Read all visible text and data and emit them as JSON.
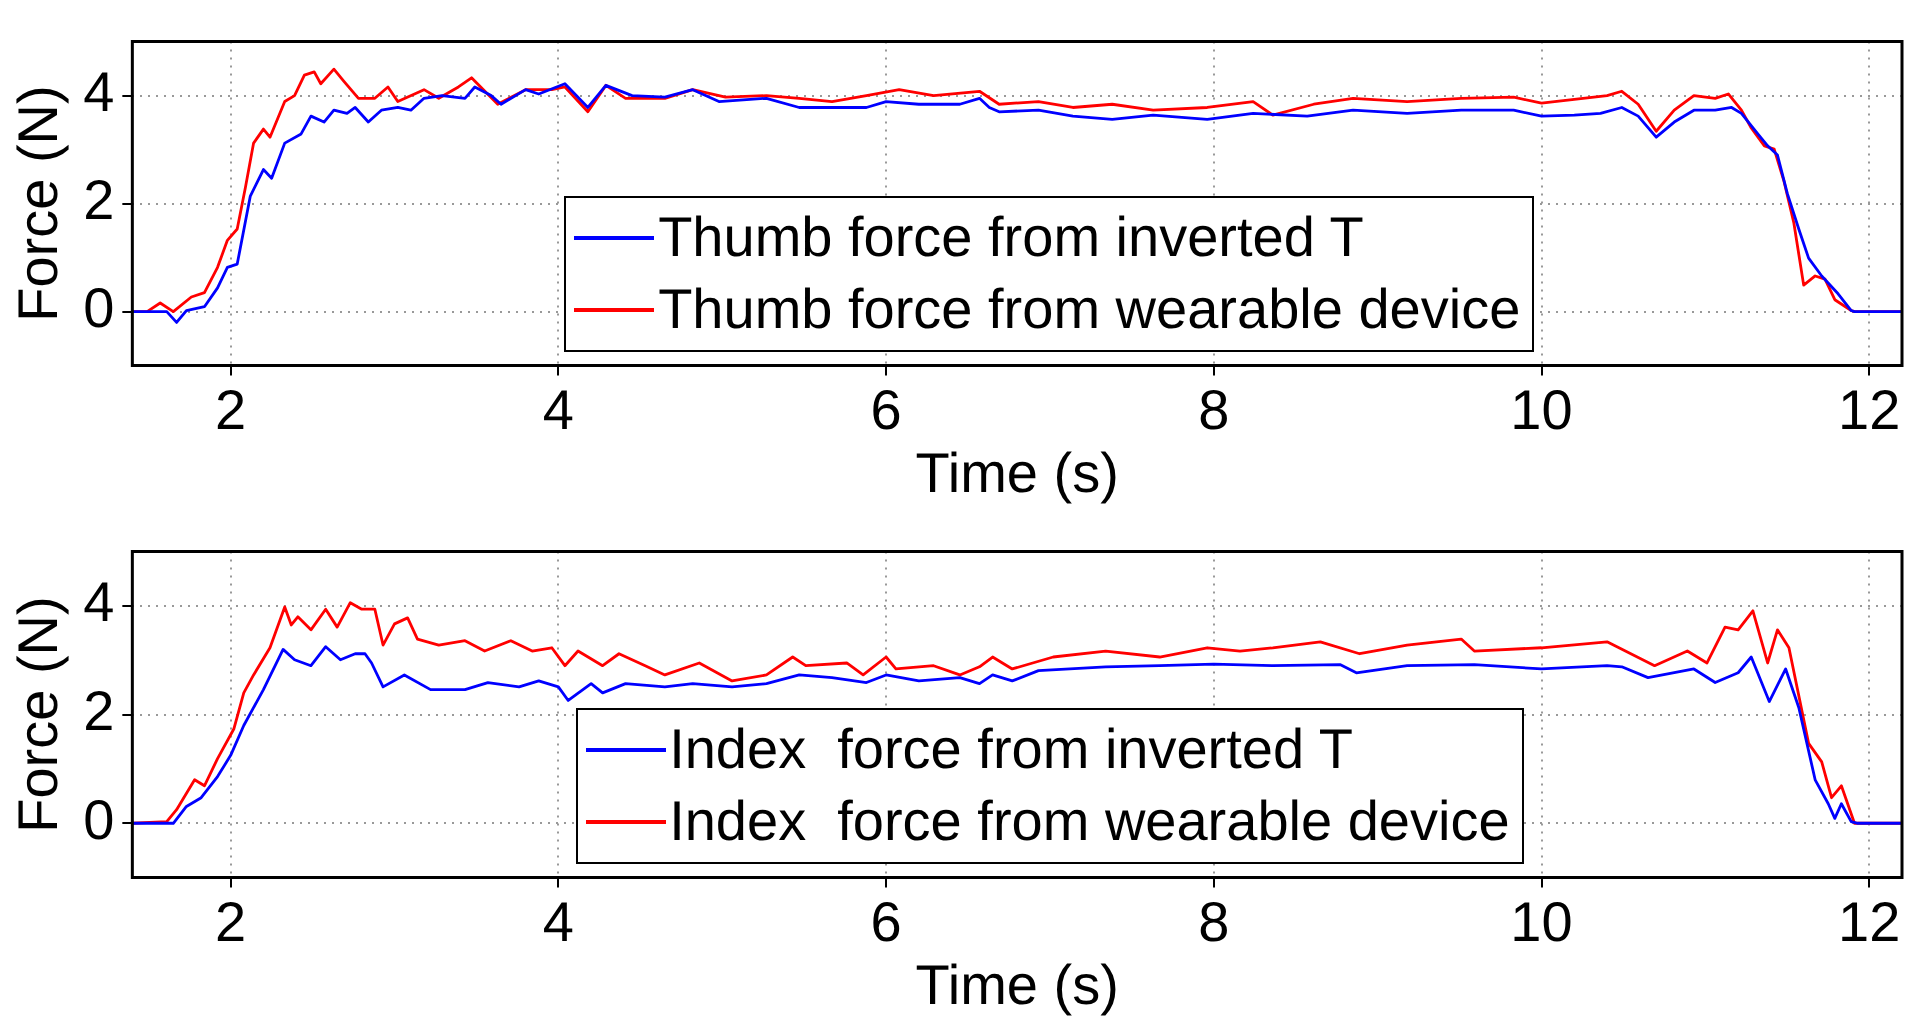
{
  "chart_data": [
    {
      "type": "line",
      "xlabel": "Time (s)",
      "ylabel": "Force (N)",
      "xlim": [
        1.4,
        12.2
      ],
      "xticks": [
        2,
        4,
        6,
        8,
        10,
        12
      ],
      "ylim": [
        -1,
        5
      ],
      "yticks": [
        0,
        2,
        4
      ],
      "grid": true,
      "legend": "bottom",
      "marker": "none",
      "line_style": "solid",
      "series": [
        {
          "name": "Thumb force from inverted T",
          "color": "#0000ff",
          "x": [
            1.4,
            1.61,
            1.67,
            1.73,
            1.84,
            1.92,
            1.98,
            2.04,
            2.12,
            2.2,
            2.25,
            2.33,
            2.43,
            2.49,
            2.57,
            2.63,
            2.71,
            2.76,
            2.84,
            2.92,
            3.02,
            3.1,
            3.18,
            3.29,
            3.43,
            3.49,
            3.59,
            3.65,
            3.8,
            3.88,
            4.04,
            4.18,
            4.29,
            4.45,
            4.65,
            4.82,
            4.98,
            5.27,
            5.47,
            5.67,
            5.88,
            6.0,
            6.2,
            6.45,
            6.57,
            6.63,
            6.69,
            6.93,
            7.14,
            7.38,
            7.63,
            7.96,
            8.24,
            8.57,
            8.85,
            9.18,
            9.51,
            9.83,
            10.0,
            10.2,
            10.36,
            10.49,
            10.59,
            10.7,
            10.81,
            10.93,
            11.06,
            11.16,
            11.22,
            11.32,
            11.38,
            11.44,
            11.5,
            11.57,
            11.63,
            11.71,
            11.81,
            11.89,
            11.91,
            12.2
          ],
          "values": [
            0,
            0,
            -0.2,
            0.02,
            0.09,
            0.44,
            0.82,
            0.88,
            2.14,
            2.63,
            2.47,
            3.12,
            3.29,
            3.62,
            3.51,
            3.73,
            3.67,
            3.78,
            3.51,
            3.73,
            3.78,
            3.73,
            3.95,
            4.0,
            3.95,
            4.16,
            4.0,
            3.84,
            4.11,
            4.03,
            4.22,
            3.78,
            4.19,
            4.0,
            3.97,
            4.11,
            3.89,
            3.95,
            3.78,
            3.78,
            3.78,
            3.89,
            3.84,
            3.84,
            3.95,
            3.78,
            3.7,
            3.73,
            3.62,
            3.56,
            3.64,
            3.56,
            3.67,
            3.62,
            3.73,
            3.67,
            3.73,
            3.73,
            3.62,
            3.64,
            3.67,
            3.78,
            3.62,
            3.23,
            3.51,
            3.73,
            3.73,
            3.78,
            3.67,
            3.29,
            3.07,
            2.9,
            2.19,
            1.53,
            0.99,
            0.66,
            0.33,
            0.02,
            0,
            0
          ]
        },
        {
          "name": "Thumb force from wearable device",
          "color": "#ff0000",
          "x": [
            1.4,
            1.49,
            1.57,
            1.65,
            1.76,
            1.84,
            1.92,
            1.98,
            2.04,
            2.09,
            2.14,
            2.2,
            2.24,
            2.33,
            2.39,
            2.45,
            2.51,
            2.55,
            2.63,
            2.69,
            2.78,
            2.88,
            2.96,
            3.02,
            3.18,
            3.27,
            3.39,
            3.47,
            3.63,
            3.8,
            3.96,
            4.04,
            4.18,
            4.29,
            4.41,
            4.65,
            4.82,
            5.02,
            5.27,
            5.47,
            5.67,
            5.88,
            6.08,
            6.29,
            6.57,
            6.69,
            6.93,
            7.14,
            7.38,
            7.63,
            7.96,
            8.24,
            8.36,
            8.61,
            8.85,
            9.18,
            9.51,
            9.83,
            10.0,
            10.2,
            10.4,
            10.49,
            10.59,
            10.7,
            10.81,
            10.93,
            11.06,
            11.14,
            11.22,
            11.28,
            11.36,
            11.42,
            11.48,
            11.54,
            11.6,
            11.67,
            11.73,
            11.79,
            11.89,
            11.91,
            12.2
          ],
          "values": [
            0,
            0,
            0.16,
            0,
            0.27,
            0.35,
            0.82,
            1.32,
            1.53,
            2.3,
            3.12,
            3.38,
            3.23,
            3.89,
            4.0,
            4.38,
            4.44,
            4.22,
            4.49,
            4.27,
            3.95,
            3.95,
            4.16,
            3.89,
            4.11,
            3.95,
            4.16,
            4.33,
            3.84,
            4.11,
            4.11,
            4.16,
            3.7,
            4.19,
            3.95,
            3.95,
            4.11,
            3.97,
            4.0,
            3.95,
            3.89,
            4.0,
            4.11,
            4.0,
            4.08,
            3.84,
            3.89,
            3.78,
            3.84,
            3.73,
            3.78,
            3.89,
            3.64,
            3.84,
            3.95,
            3.89,
            3.95,
            3.97,
            3.86,
            3.93,
            4.0,
            4.08,
            3.84,
            3.34,
            3.73,
            4.0,
            3.95,
            4.03,
            3.73,
            3.4,
            3.07,
            3.01,
            2.41,
            1.64,
            0.49,
            0.66,
            0.6,
            0.22,
            0.02,
            0,
            0
          ]
        }
      ]
    },
    {
      "type": "line",
      "xlabel": "Time (s)",
      "ylabel": "Force (N)",
      "xlim": [
        1.4,
        12.2
      ],
      "xticks": [
        2,
        4,
        6,
        8,
        10,
        12
      ],
      "ylim": [
        -1,
        5
      ],
      "yticks": [
        0,
        2,
        4
      ],
      "grid": true,
      "legend": "bottom",
      "marker": "none",
      "line_style": "solid",
      "series": [
        {
          "name": "Index  force from inverted T",
          "color": "#0000ff",
          "x": [
            1.4,
            1.65,
            1.73,
            1.82,
            1.92,
            2.0,
            2.08,
            2.2,
            2.32,
            2.39,
            2.49,
            2.58,
            2.67,
            2.76,
            2.82,
            2.86,
            2.93,
            3.06,
            3.22,
            3.43,
            3.57,
            3.76,
            3.88,
            4.0,
            4.06,
            4.2,
            4.27,
            4.41,
            4.65,
            4.82,
            5.06,
            5.27,
            5.47,
            5.67,
            5.88,
            6.0,
            6.2,
            6.45,
            6.57,
            6.65,
            6.77,
            6.93,
            7.34,
            7.67,
            8.0,
            8.36,
            8.77,
            8.87,
            9.18,
            9.59,
            10.0,
            10.4,
            10.49,
            10.65,
            10.93,
            11.06,
            11.2,
            11.28,
            11.39,
            11.49,
            11.57,
            11.67,
            11.75,
            11.79,
            11.83,
            11.89,
            11.93,
            12.2
          ],
          "values": [
            0,
            0,
            0.31,
            0.47,
            0.86,
            1.25,
            1.8,
            2.46,
            3.2,
            3.01,
            2.9,
            3.25,
            3.01,
            3.12,
            3.12,
            2.95,
            2.51,
            2.73,
            2.46,
            2.46,
            2.59,
            2.51,
            2.62,
            2.51,
            2.26,
            2.57,
            2.4,
            2.57,
            2.51,
            2.57,
            2.51,
            2.57,
            2.73,
            2.68,
            2.59,
            2.73,
            2.62,
            2.68,
            2.57,
            2.73,
            2.62,
            2.81,
            2.88,
            2.9,
            2.93,
            2.9,
            2.92,
            2.77,
            2.9,
            2.92,
            2.84,
            2.9,
            2.88,
            2.68,
            2.84,
            2.59,
            2.77,
            3.06,
            2.24,
            2.84,
            2.13,
            0.8,
            0.36,
            0.09,
            0.36,
            0.03,
            0,
            0
          ]
        },
        {
          "name": "Index  force from wearable device",
          "color": "#ff0000",
          "x": [
            1.4,
            1.61,
            1.67,
            1.78,
            1.84,
            1.92,
            2.02,
            2.08,
            2.14,
            2.24,
            2.33,
            2.37,
            2.41,
            2.49,
            2.58,
            2.65,
            2.73,
            2.8,
            2.88,
            2.93,
            3.0,
            3.08,
            3.14,
            3.27,
            3.43,
            3.55,
            3.71,
            3.84,
            3.96,
            4.04,
            4.12,
            4.27,
            4.37,
            4.53,
            4.65,
            4.86,
            5.06,
            5.27,
            5.43,
            5.51,
            5.76,
            5.86,
            6.0,
            6.06,
            6.29,
            6.45,
            6.57,
            6.65,
            6.77,
            7.02,
            7.34,
            7.67,
            7.96,
            8.16,
            8.36,
            8.65,
            8.89,
            9.18,
            9.51,
            9.59,
            10.0,
            10.4,
            10.69,
            10.89,
            11.01,
            11.12,
            11.2,
            11.29,
            11.38,
            11.44,
            11.51,
            11.63,
            11.71,
            11.77,
            11.83,
            11.91,
            12.2
          ],
          "values": [
            0,
            0.03,
            0.25,
            0.8,
            0.69,
            1.19,
            1.74,
            2.4,
            2.73,
            3.23,
            3.98,
            3.65,
            3.8,
            3.56,
            3.94,
            3.61,
            4.06,
            3.94,
            3.94,
            3.28,
            3.67,
            3.78,
            3.39,
            3.28,
            3.36,
            3.17,
            3.36,
            3.17,
            3.23,
            2.9,
            3.17,
            2.9,
            3.12,
            2.9,
            2.73,
            2.95,
            2.62,
            2.73,
            3.06,
            2.9,
            2.95,
            2.73,
            3.06,
            2.84,
            2.9,
            2.73,
            2.88,
            3.06,
            2.84,
            3.06,
            3.17,
            3.06,
            3.23,
            3.17,
            3.23,
            3.34,
            3.12,
            3.28,
            3.39,
            3.17,
            3.23,
            3.34,
            2.9,
            3.17,
            2.95,
            3.61,
            3.56,
            3.91,
            2.95,
            3.56,
            3.23,
            1.47,
            1.13,
            0.47,
            0.69,
            0,
            0
          ]
        }
      ]
    }
  ]
}
